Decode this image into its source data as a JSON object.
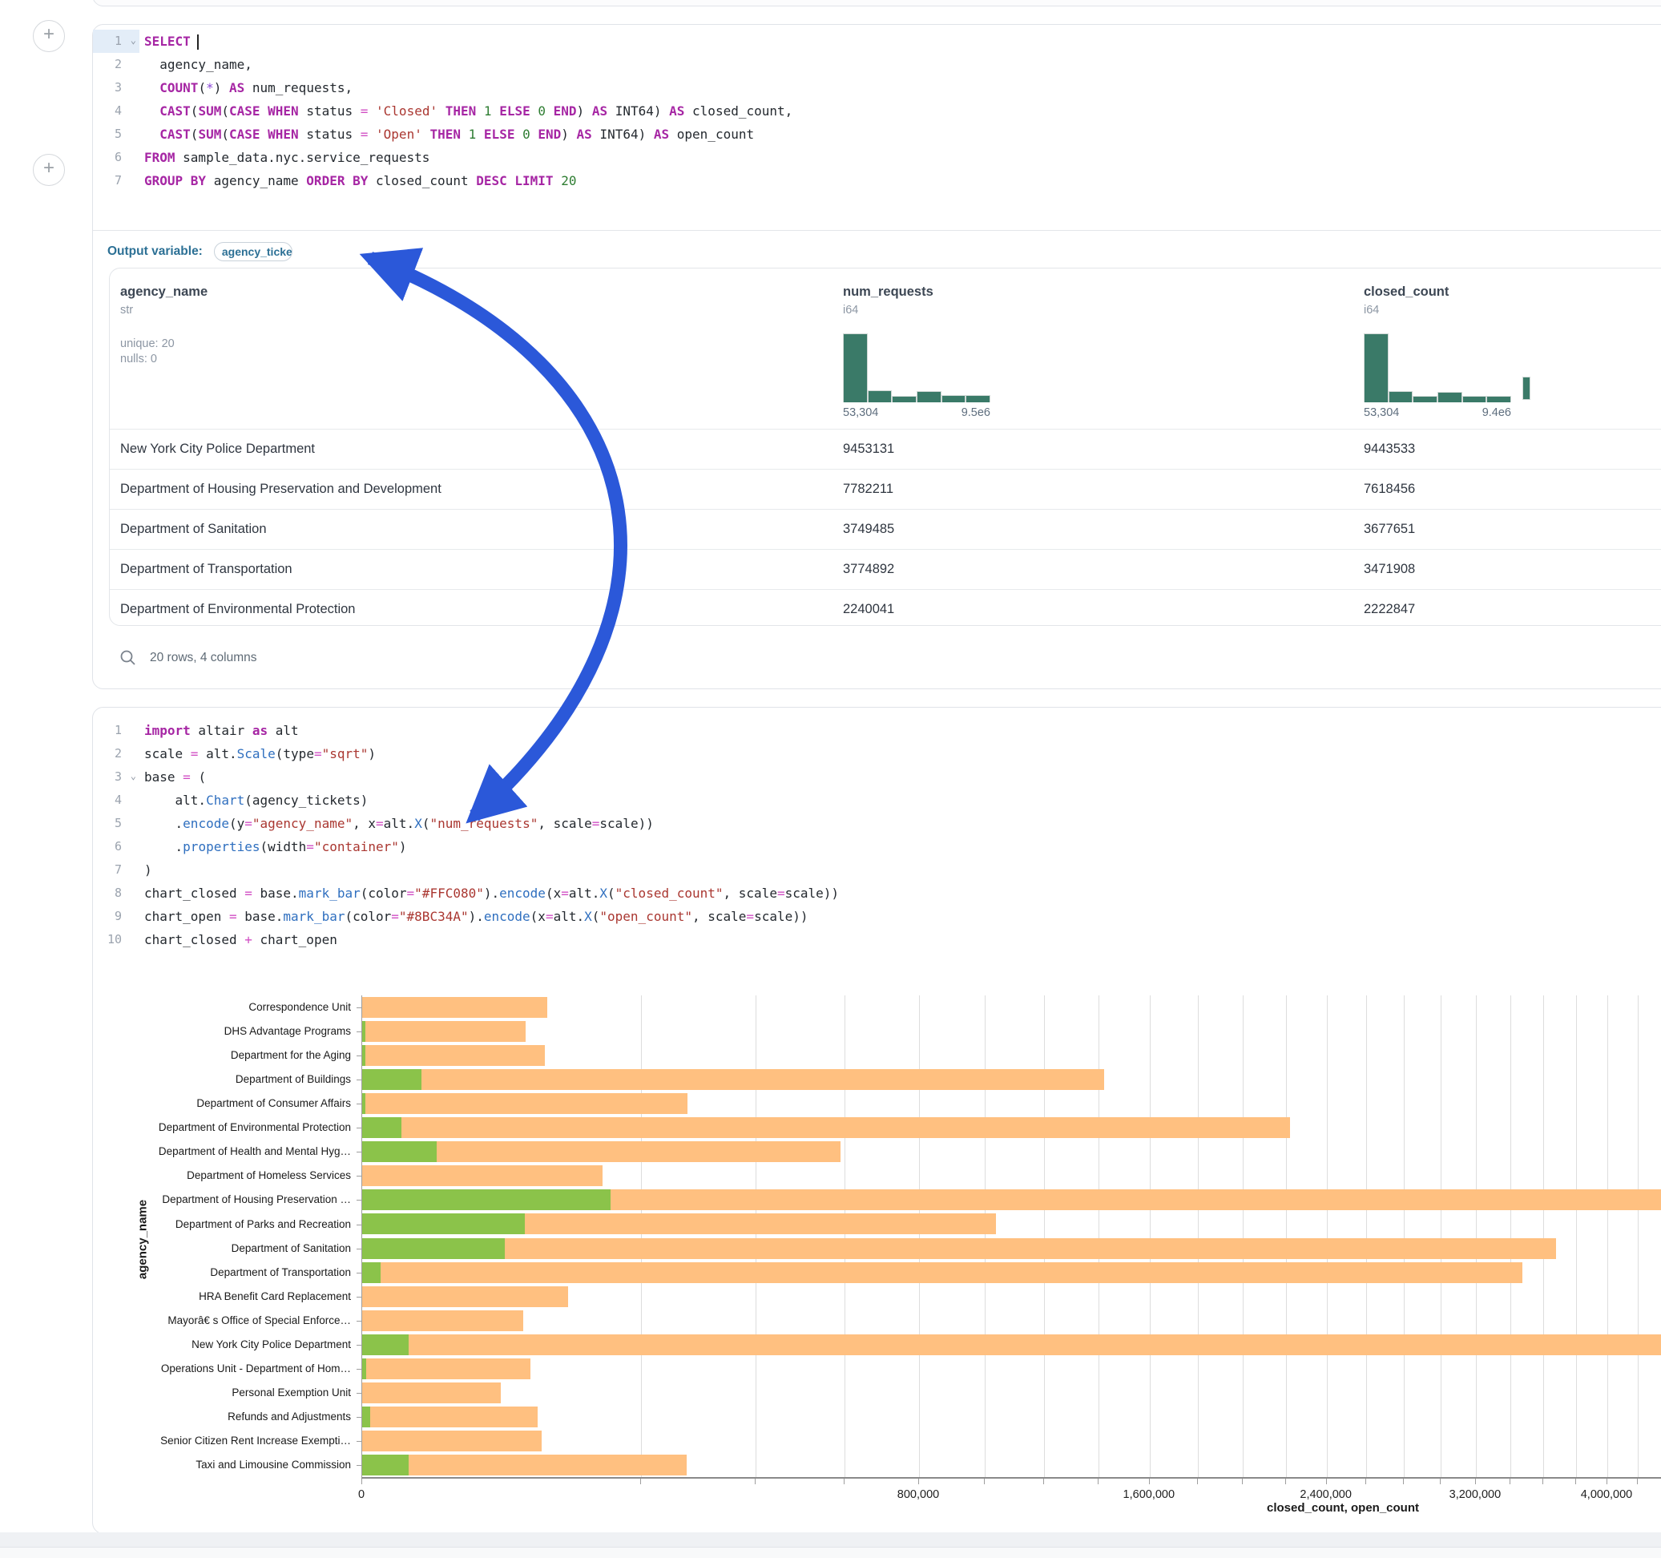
{
  "colors": {
    "closed_bar": "#FFC080",
    "open_bar": "#8BC34A",
    "histogram": "#3A7A68",
    "arrow": "#2B58D9",
    "accent_blue": "#2C7095"
  },
  "sql_cell": {
    "lines": [
      {
        "n": "1",
        "chevron": true,
        "active": true,
        "cursor": true,
        "tokens": [
          [
            "kw",
            "SELECT"
          ]
        ]
      },
      {
        "n": "2",
        "tokens": [
          [
            "txt",
            "  agency_name,"
          ]
        ]
      },
      {
        "n": "3",
        "tokens": [
          [
            "txt",
            "  "
          ],
          [
            "kw",
            "COUNT"
          ],
          [
            "txt",
            "("
          ],
          [
            "star",
            "*"
          ],
          [
            "txt",
            ") "
          ],
          [
            "kw",
            "AS"
          ],
          [
            "txt",
            " num_requests,"
          ]
        ]
      },
      {
        "n": "4",
        "tokens": [
          [
            "txt",
            "  "
          ],
          [
            "kw",
            "CAST"
          ],
          [
            "txt",
            "("
          ],
          [
            "kw",
            "SUM"
          ],
          [
            "txt",
            "("
          ],
          [
            "kw",
            "CASE WHEN"
          ],
          [
            "txt",
            " status "
          ],
          [
            "op",
            "="
          ],
          [
            "txt",
            " "
          ],
          [
            "str",
            "'Closed'"
          ],
          [
            "txt",
            " "
          ],
          [
            "kw",
            "THEN"
          ],
          [
            "txt",
            " "
          ],
          [
            "num",
            "1"
          ],
          [
            "txt",
            " "
          ],
          [
            "kw",
            "ELSE"
          ],
          [
            "txt",
            " "
          ],
          [
            "num",
            "0"
          ],
          [
            "txt",
            " "
          ],
          [
            "kw",
            "END"
          ],
          [
            "txt",
            ") "
          ],
          [
            "kw",
            "AS"
          ],
          [
            "txt",
            " INT64) "
          ],
          [
            "kw",
            "AS"
          ],
          [
            "txt",
            " closed_count,"
          ]
        ]
      },
      {
        "n": "5",
        "tokens": [
          [
            "txt",
            "  "
          ],
          [
            "kw",
            "CAST"
          ],
          [
            "txt",
            "("
          ],
          [
            "kw",
            "SUM"
          ],
          [
            "txt",
            "("
          ],
          [
            "kw",
            "CASE WHEN"
          ],
          [
            "txt",
            " status "
          ],
          [
            "op",
            "="
          ],
          [
            "txt",
            " "
          ],
          [
            "str",
            "'Open'"
          ],
          [
            "txt",
            " "
          ],
          [
            "kw",
            "THEN"
          ],
          [
            "txt",
            " "
          ],
          [
            "num",
            "1"
          ],
          [
            "txt",
            " "
          ],
          [
            "kw",
            "ELSE"
          ],
          [
            "txt",
            " "
          ],
          [
            "num",
            "0"
          ],
          [
            "txt",
            " "
          ],
          [
            "kw",
            "END"
          ],
          [
            "txt",
            ") "
          ],
          [
            "kw",
            "AS"
          ],
          [
            "txt",
            " INT64) "
          ],
          [
            "kw",
            "AS"
          ],
          [
            "txt",
            " open_count"
          ]
        ]
      },
      {
        "n": "6",
        "tokens": [
          [
            "kw",
            "FROM"
          ],
          [
            "txt",
            " sample_data.nyc.service_requests"
          ]
        ]
      },
      {
        "n": "7",
        "tokens": [
          [
            "kw",
            "GROUP BY"
          ],
          [
            "txt",
            " agency_name "
          ],
          [
            "kw",
            "ORDER BY"
          ],
          [
            "txt",
            " closed_count "
          ],
          [
            "kw",
            "DESC"
          ],
          [
            "txt",
            " "
          ],
          [
            "kw",
            "LIMIT"
          ],
          [
            "txt",
            " "
          ],
          [
            "num",
            "20"
          ]
        ]
      }
    ]
  },
  "output_variable": {
    "label": "Output variable:",
    "value": "agency_tickets"
  },
  "table": {
    "columns": [
      {
        "name": "agency_name",
        "type": "str",
        "stats": [
          "unique: 20",
          "nulls: 0"
        ]
      },
      {
        "name": "num_requests",
        "type": "i64",
        "hist": [
          1.0,
          0.16,
          0.08,
          0.15,
          0.09,
          0.09
        ],
        "min_label": "53,304",
        "max_label": "9.5e6"
      },
      {
        "name": "closed_count",
        "type": "i64",
        "hist": [
          1.0,
          0.15,
          0.08,
          0.14,
          0.08,
          0.08
        ],
        "min_label": "53,304",
        "max_label": "9.4e6"
      }
    ],
    "rows": [
      [
        "New York City Police Department",
        "9453131",
        "9443533"
      ],
      [
        "Department of Housing Preservation and Development",
        "7782211",
        "7618456"
      ],
      [
        "Department of Sanitation",
        "3749485",
        "3677651"
      ],
      [
        "Department of Transportation",
        "3774892",
        "3471908"
      ],
      [
        "Department of Environmental Protection",
        "2240041",
        "2222847"
      ]
    ],
    "footer": "20 rows, 4 columns"
  },
  "python_cell": {
    "lines": [
      {
        "n": "1",
        "tokens": [
          [
            "kw",
            "import"
          ],
          [
            "txt",
            " altair "
          ],
          [
            "kw",
            "as"
          ],
          [
            "txt",
            " alt"
          ]
        ]
      },
      {
        "n": "2",
        "tokens": [
          [
            "txt",
            "scale "
          ],
          [
            "op",
            "="
          ],
          [
            "txt",
            " alt."
          ],
          [
            "fn",
            "Scale"
          ],
          [
            "txt",
            "(type"
          ],
          [
            "op",
            "="
          ],
          [
            "str",
            "\"sqrt\""
          ],
          [
            "txt",
            ")"
          ]
        ]
      },
      {
        "n": "3",
        "chevron": true,
        "tokens": [
          [
            "txt",
            "base "
          ],
          [
            "op",
            "="
          ],
          [
            "txt",
            " ("
          ]
        ]
      },
      {
        "n": "4",
        "tokens": [
          [
            "txt",
            "    alt."
          ],
          [
            "fn",
            "Chart"
          ],
          [
            "txt",
            "(agency_tickets)"
          ]
        ]
      },
      {
        "n": "5",
        "tokens": [
          [
            "txt",
            "    ."
          ],
          [
            "fn",
            "encode"
          ],
          [
            "txt",
            "(y"
          ],
          [
            "op",
            "="
          ],
          [
            "str",
            "\"agency_name\""
          ],
          [
            "txt",
            ", x"
          ],
          [
            "op",
            "="
          ],
          [
            "txt",
            "alt."
          ],
          [
            "fn",
            "X"
          ],
          [
            "txt",
            "("
          ],
          [
            "str",
            "\"num_requests\""
          ],
          [
            "txt",
            ", scale"
          ],
          [
            "op",
            "="
          ],
          [
            "txt",
            "scale))"
          ]
        ]
      },
      {
        "n": "6",
        "tokens": [
          [
            "txt",
            "    ."
          ],
          [
            "fn",
            "properties"
          ],
          [
            "txt",
            "(width"
          ],
          [
            "op",
            "="
          ],
          [
            "str",
            "\"container\""
          ],
          [
            "txt",
            ")"
          ]
        ]
      },
      {
        "n": "7",
        "tokens": [
          [
            "txt",
            ")"
          ]
        ]
      },
      {
        "n": "8",
        "tokens": [
          [
            "txt",
            "chart_closed "
          ],
          [
            "op",
            "="
          ],
          [
            "txt",
            " base."
          ],
          [
            "fn",
            "mark_bar"
          ],
          [
            "txt",
            "(color"
          ],
          [
            "op",
            "="
          ],
          [
            "str",
            "\"#FFC080\""
          ],
          [
            "txt",
            ")."
          ],
          [
            "fn",
            "encode"
          ],
          [
            "txt",
            "(x"
          ],
          [
            "op",
            "="
          ],
          [
            "txt",
            "alt."
          ],
          [
            "fn",
            "X"
          ],
          [
            "txt",
            "("
          ],
          [
            "str",
            "\"closed_count\""
          ],
          [
            "txt",
            ", scale"
          ],
          [
            "op",
            "="
          ],
          [
            "txt",
            "scale))"
          ]
        ]
      },
      {
        "n": "9",
        "tokens": [
          [
            "txt",
            "chart_open "
          ],
          [
            "op",
            "="
          ],
          [
            "txt",
            " base."
          ],
          [
            "fn",
            "mark_bar"
          ],
          [
            "txt",
            "(color"
          ],
          [
            "op",
            "="
          ],
          [
            "str",
            "\"#8BC34A\""
          ],
          [
            "txt",
            ")."
          ],
          [
            "fn",
            "encode"
          ],
          [
            "txt",
            "(x"
          ],
          [
            "op",
            "="
          ],
          [
            "txt",
            "alt."
          ],
          [
            "fn",
            "X"
          ],
          [
            "txt",
            "("
          ],
          [
            "str",
            "\"open_count\""
          ],
          [
            "txt",
            ", scale"
          ],
          [
            "op",
            "="
          ],
          [
            "txt",
            "scale))"
          ]
        ]
      },
      {
        "n": "10",
        "tokens": [
          [
            "txt",
            "chart_closed "
          ],
          [
            "op",
            "+"
          ],
          [
            "txt",
            " chart_open"
          ]
        ]
      }
    ]
  },
  "chart_data": {
    "type": "bar",
    "orientation": "horizontal",
    "scale_type": "sqrt",
    "xlabel": "closed_count, open_count",
    "ylabel": "agency_name",
    "x_axis": {
      "major_tick_values": [
        0,
        800000,
        1600000,
        2400000,
        3200000,
        4000000
      ],
      "major_tick_labels": [
        "0",
        "800,000",
        "1,600,000",
        "2,400,000",
        "3,200,000",
        "4,000,000"
      ],
      "minor_step": 200000,
      "grid": true
    },
    "categories": [
      "Correspondence Unit",
      "DHS Advantage Programs",
      "Department for the Aging",
      "Department of Buildings",
      "Department of Consumer Affairs",
      "Department of Environmental Protection",
      "Department of Health and Mental Hyg…",
      "Department of Homeless Services",
      "Department of Housing Preservation …",
      "Department of Parks and Recreation",
      "Department of Sanitation",
      "Department of Transportation",
      "HRA Benefit Card Replacement",
      "Mayorâ€ s Office of Special Enforce…",
      "New York City Police Department",
      "Operations Unit - Department of Hom…",
      "Personal Exemption Unit",
      "Refunds and Adjustments",
      "Senior Citizen Rent Increase Exempti…",
      "Taxi and Limousine Commission"
    ],
    "series": [
      {
        "name": "closed_count",
        "color": "#FFC080",
        "values": [
          88000,
          69000,
          86000,
          1420000,
          273000,
          2222847,
          590000,
          149000,
          7618456,
          1036000,
          3677651,
          3471908,
          109500,
          67000,
          9443533,
          73000,
          49600,
          79500,
          83000,
          271500
        ]
      },
      {
        "name": "open_count",
        "color": "#8BC34A",
        "values": [
          0,
          30,
          30,
          9100,
          20,
          4000,
          14300,
          0,
          159000,
          68000,
          52500,
          900,
          0,
          0,
          5600,
          45,
          0,
          170,
          0,
          5600
        ]
      }
    ]
  }
}
